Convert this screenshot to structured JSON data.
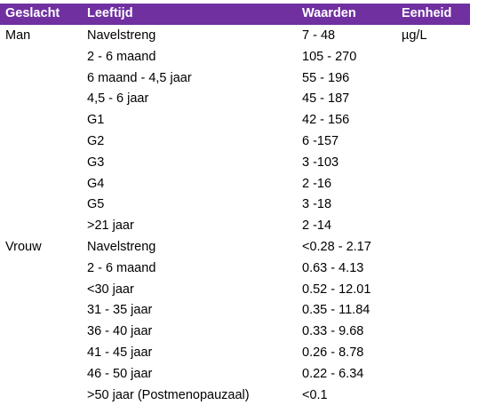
{
  "header": {
    "col1": "Geslacht",
    "col2": "Leeftijd",
    "col3": "Waarden",
    "col4": "Eenheid"
  },
  "rows": [
    {
      "gender": "Man",
      "age": "Navelstreng",
      "value": "7 - 48",
      "unit": "µg/L"
    },
    {
      "gender": "",
      "age": "2 - 6 maand",
      "value": "105 - 270",
      "unit": ""
    },
    {
      "gender": "",
      "age": "6 maand - 4,5 jaar",
      "value": "55 - 196",
      "unit": ""
    },
    {
      "gender": "",
      "age": "4,5 - 6 jaar",
      "value": "45 - 187",
      "unit": ""
    },
    {
      "gender": "",
      "age": "G1",
      "value": "42 - 156",
      "unit": ""
    },
    {
      "gender": "",
      "age": "G2",
      "value": "6 -157",
      "unit": ""
    },
    {
      "gender": "",
      "age": "G3",
      "value": "3 -103",
      "unit": ""
    },
    {
      "gender": "",
      "age": "G4",
      "value": "2 -16",
      "unit": ""
    },
    {
      "gender": "",
      "age": "G5",
      "value": "3 -18",
      "unit": ""
    },
    {
      "gender": "",
      "age": ">21 jaar",
      "value": "2 -14",
      "unit": ""
    },
    {
      "gender": "Vrouw",
      "age": "Navelstreng",
      "value": "<0.28 - 2.17",
      "unit": ""
    },
    {
      "gender": "",
      "age": "2 - 6 maand",
      "value": "0.63 - 4.13",
      "unit": ""
    },
    {
      "gender": "",
      "age": "<30 jaar",
      "value": "0.52 - 12.01",
      "unit": ""
    },
    {
      "gender": "",
      "age": "31 - 35 jaar",
      "value": "0.35 - 11.84",
      "unit": ""
    },
    {
      "gender": "",
      "age": "36 - 40 jaar",
      "value": "0.33 - 9.68",
      "unit": ""
    },
    {
      "gender": "",
      "age": "41 - 45 jaar",
      "value": "0.26 - 8.78",
      "unit": ""
    },
    {
      "gender": "",
      "age": "46 - 50 jaar",
      "value": "0.22 - 6.34",
      "unit": ""
    },
    {
      "gender": "",
      "age": ">50 jaar (Postmenopauzaal)",
      "value": "<0.1",
      "unit": ""
    }
  ]
}
